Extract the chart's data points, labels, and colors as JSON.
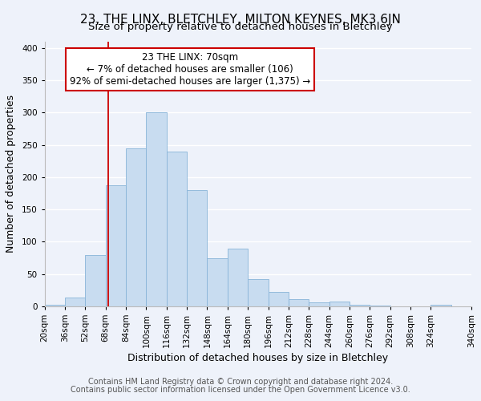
{
  "title": "23, THE LINX, BLETCHLEY, MILTON KEYNES, MK3 6JN",
  "subtitle": "Size of property relative to detached houses in Bletchley",
  "xlabel": "Distribution of detached houses by size in Bletchley",
  "ylabel": "Number of detached properties",
  "footnote1": "Contains HM Land Registry data © Crown copyright and database right 2024.",
  "footnote2": "Contains public sector information licensed under the Open Government Licence v3.0.",
  "bin_labels": [
    "20sqm",
    "36sqm",
    "52sqm",
    "68sqm",
    "84sqm",
    "100sqm",
    "116sqm",
    "132sqm",
    "148sqm",
    "164sqm",
    "180sqm",
    "196sqm",
    "212sqm",
    "228sqm",
    "244sqm",
    "260sqm",
    "276sqm",
    "292sqm",
    "308sqm",
    "324sqm",
    "340sqm"
  ],
  "bin_left_edges": [
    20,
    36,
    52,
    68,
    84,
    100,
    116,
    132,
    148,
    164,
    180,
    196,
    212,
    228,
    244,
    260,
    276,
    292,
    308,
    324
  ],
  "bar_heights": [
    3,
    14,
    80,
    188,
    245,
    300,
    240,
    180,
    75,
    90,
    42,
    22,
    11,
    6,
    7,
    2,
    1,
    0,
    0,
    2
  ],
  "bar_color": "#c8dcf0",
  "bar_edgecolor": "#88b4d8",
  "bin_width": 16,
  "xlim_left": 20,
  "xlim_right": 340,
  "ylim": [
    0,
    410
  ],
  "yticks": [
    0,
    50,
    100,
    150,
    200,
    250,
    300,
    350,
    400
  ],
  "vline_x": 70,
  "vline_color": "#cc0000",
  "annotation_lines": [
    "23 THE LINX: 70sqm",
    "← 7% of detached houses are smaller (106)",
    "92% of semi-detached houses are larger (1,375) →"
  ],
  "bg_color": "#eef2fa",
  "grid_color": "#ffffff",
  "title_fontsize": 11,
  "subtitle_fontsize": 9.5,
  "label_fontsize": 9,
  "tick_fontsize": 7.5,
  "annotation_fontsize": 8.5,
  "footnote_fontsize": 7
}
